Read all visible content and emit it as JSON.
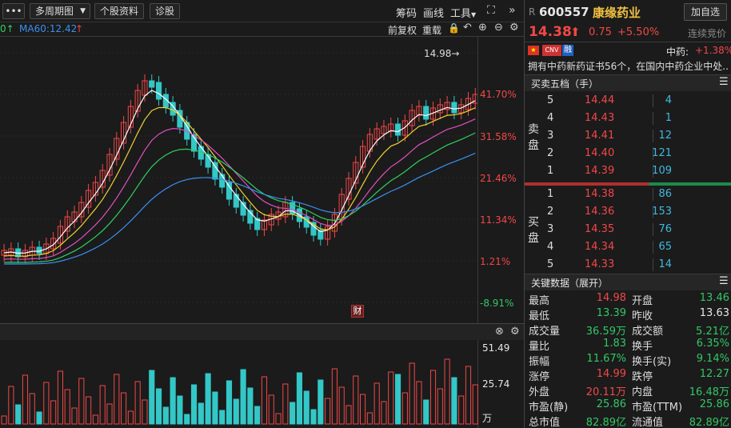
{
  "toolbar": {
    "menu_dots": "•••",
    "period": "多周期图",
    "stock_info": "个股资料",
    "diagnosis": "诊股",
    "chips": "筹码",
    "draw": "画线",
    "tools": "工具",
    "expand_icon": "expand-icon",
    "collapse_icon": "collapse-panel-icon"
  },
  "ma_legend": {
    "cut_arrow": "0↑",
    "ma60": "MA60:12.42",
    "ma60_arrow": "↑"
  },
  "chart_controls": {
    "fq": "前复权",
    "reset": "重载"
  },
  "price_axis": {
    "labels": [
      "41.70%",
      "31.58%",
      "21.46%",
      "11.34%",
      "1.21%",
      "-8.91%"
    ]
  },
  "max_marker": "14.98→",
  "fin_badge": "财",
  "volume_axis": {
    "labels": [
      "51.49",
      "25.74",
      "万"
    ]
  },
  "stock": {
    "market_tag": "R",
    "code": "600557",
    "name": "康缘药业",
    "price": "14.38",
    "change": "0.75",
    "pct": "+5.50%",
    "auction": "连续竞价",
    "add_watch": "加自选"
  },
  "sector": {
    "name": "中药:",
    "pct": "+1.38%"
  },
  "tags": {
    "cnv": "CNV",
    "rong": "融"
  },
  "desc": "拥有中药新药证书56个，在国内中药企业中处...",
  "orderbook": {
    "title": "买卖五档（手）",
    "sell_label": [
      "卖",
      "盘"
    ],
    "buy_label": [
      "买",
      "盘"
    ],
    "asks": [
      {
        "lvl": "5",
        "price": "14.44",
        "vol": "4"
      },
      {
        "lvl": "4",
        "price": "14.43",
        "vol": "1"
      },
      {
        "lvl": "3",
        "price": "14.41",
        "vol": "12"
      },
      {
        "lvl": "2",
        "price": "14.40",
        "vol": "121"
      },
      {
        "lvl": "1",
        "price": "14.39",
        "vol": "109"
      }
    ],
    "bids": [
      {
        "lvl": "1",
        "price": "14.38",
        "vol": "86"
      },
      {
        "lvl": "2",
        "price": "14.36",
        "vol": "153"
      },
      {
        "lvl": "3",
        "price": "14.35",
        "vol": "76"
      },
      {
        "lvl": "4",
        "price": "14.34",
        "vol": "65"
      },
      {
        "lvl": "5",
        "price": "14.33",
        "vol": "14"
      }
    ]
  },
  "keydata": {
    "title": "关键数据（展开）",
    "rows": [
      [
        {
          "k": "最高",
          "v": "14.98",
          "c": "red"
        },
        {
          "k": "开盘",
          "v": "13.46",
          "c": "grn"
        }
      ],
      [
        {
          "k": "最低",
          "v": "13.39",
          "c": "grn"
        },
        {
          "k": "昨收",
          "v": "13.63",
          "c": "wht"
        }
      ],
      [
        {
          "k": "成交量",
          "v": "36.59万",
          "c": "grn"
        },
        {
          "k": "成交额",
          "v": "5.21亿",
          "c": "grn"
        }
      ],
      [
        {
          "k": "量比",
          "v": "1.83",
          "c": "grn"
        },
        {
          "k": "换手",
          "v": "6.35%",
          "c": "grn"
        }
      ],
      [
        {
          "k": "振幅",
          "v": "11.67%",
          "c": "grn"
        },
        {
          "k": "换手(实)",
          "v": "9.14%",
          "c": "grn"
        }
      ],
      [
        {
          "k": "涨停",
          "v": "14.99",
          "c": "red"
        },
        {
          "k": "跌停",
          "v": "12.27",
          "c": "grn"
        }
      ],
      [
        {
          "k": "外盘",
          "v": "20.11万",
          "c": "red"
        },
        {
          "k": "内盘",
          "v": "16.48万",
          "c": "grn"
        }
      ],
      [
        {
          "k": "市盈(静)",
          "v": "25.86",
          "c": "grn"
        },
        {
          "k": "市盈(TTM)",
          "v": "25.86",
          "c": "grn"
        }
      ],
      [
        {
          "k": "总市值",
          "v": "82.89亿",
          "c": "grn"
        },
        {
          "k": "流通值",
          "v": "82.89亿",
          "c": "grn"
        }
      ]
    ]
  },
  "colors": {
    "up": "#f24747",
    "down": "#33c7c7",
    "ma5": "#ffffff",
    "ma10": "#f0d030",
    "ma20": "#e050c0",
    "ma30": "#30d060",
    "ma60": "#3a8ff0"
  }
}
